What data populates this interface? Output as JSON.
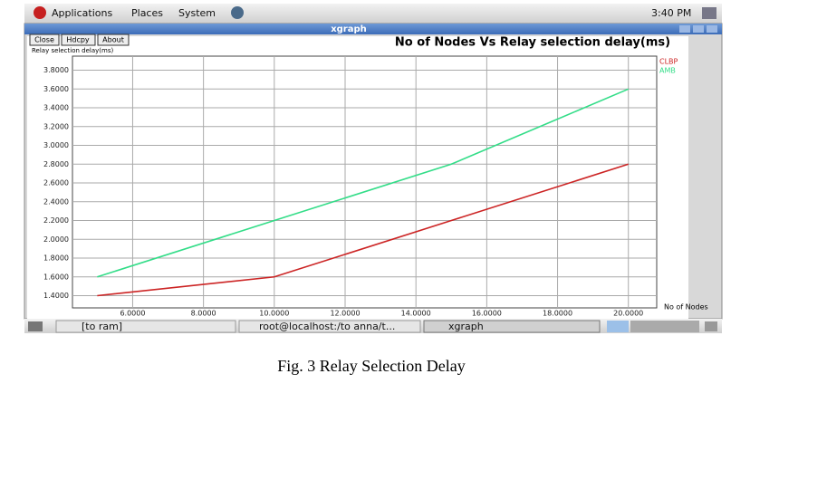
{
  "panel": {
    "menus": [
      "Applications",
      "Places",
      "System"
    ],
    "clock": "3:40 PM"
  },
  "window": {
    "title": "xgraph",
    "buttons": [
      "Close",
      "Hdcpy",
      "About"
    ]
  },
  "chart_data": {
    "type": "line",
    "title": "No of Nodes Vs Relay selection delay(ms)",
    "y_label": "Relay selection delay(ms)",
    "x_label": "No of Nodes",
    "x": [
      5,
      10,
      15,
      20
    ],
    "series": [
      {
        "name": "CLBP",
        "color": "#cc2424",
        "values": [
          1.4,
          1.6,
          2.2,
          2.8
        ]
      },
      {
        "name": "AMB",
        "color": "#33dd88",
        "values": [
          1.6,
          2.2,
          2.8,
          3.6
        ]
      }
    ],
    "xlim": [
      4.3,
      20.8
    ],
    "ylim": [
      1.27,
      3.95
    ],
    "xticks": [
      {
        "value": 6,
        "label": "6.0000"
      },
      {
        "value": 8,
        "label": "8.0000"
      },
      {
        "value": 10,
        "label": "10.0000"
      },
      {
        "value": 12,
        "label": "12.0000"
      },
      {
        "value": 14,
        "label": "14.0000"
      },
      {
        "value": 16,
        "label": "16.0000"
      },
      {
        "value": 18,
        "label": "18.0000"
      },
      {
        "value": 20,
        "label": "20.0000"
      }
    ],
    "yticks": [
      {
        "value": 1.4,
        "label": "1.4000"
      },
      {
        "value": 1.6,
        "label": "1.6000"
      },
      {
        "value": 1.8,
        "label": "1.8000"
      },
      {
        "value": 2.0,
        "label": "2.0000"
      },
      {
        "value": 2.2,
        "label": "2.2000"
      },
      {
        "value": 2.4,
        "label": "2.4000"
      },
      {
        "value": 2.6,
        "label": "2.6000"
      },
      {
        "value": 2.8,
        "label": "2.8000"
      },
      {
        "value": 3.0,
        "label": "3.0000"
      },
      {
        "value": 3.2,
        "label": "3.2000"
      },
      {
        "value": 3.4,
        "label": "3.4000"
      },
      {
        "value": 3.6,
        "label": "3.6000"
      },
      {
        "value": 3.8,
        "label": "3.8000"
      }
    ],
    "grid": true
  },
  "taskbar": {
    "items": [
      "[to ram]",
      "root@localhost:/to anna/t...",
      "xgraph"
    ]
  },
  "caption": "Fig. 3 Relay Selection Delay"
}
